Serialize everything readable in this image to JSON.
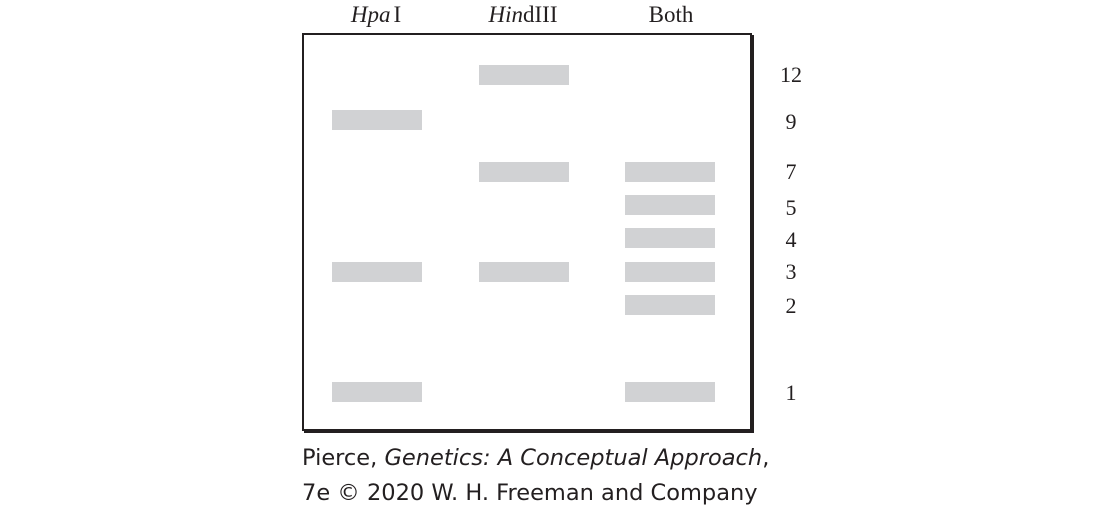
{
  "lanes": [
    {
      "name_italic": "Hpa",
      "name_roman": "I"
    },
    {
      "name_italic": "Hin",
      "name_roman": "dIII"
    },
    {
      "name_italic": "",
      "name_roman": "Both"
    }
  ],
  "size_labels": [
    "12",
    "9",
    "7",
    "5",
    "4",
    "3",
    "2",
    "1"
  ],
  "bands": {
    "hpai": [
      "9",
      "3",
      "1"
    ],
    "hindiii": [
      "12",
      "7",
      "3"
    ],
    "both": [
      "7",
      "5",
      "4",
      "3",
      "2",
      "1"
    ]
  },
  "colors": {
    "band": "#d1d2d4",
    "border": "#231f20",
    "text": "#231f20"
  },
  "caption": {
    "line1_prefix": "Pierce, ",
    "line1_title": "Genetics: A Conceptual Approach",
    "line1_suffix": ",",
    "line2": "7e © 2020 W. H. Freeman and Company"
  }
}
